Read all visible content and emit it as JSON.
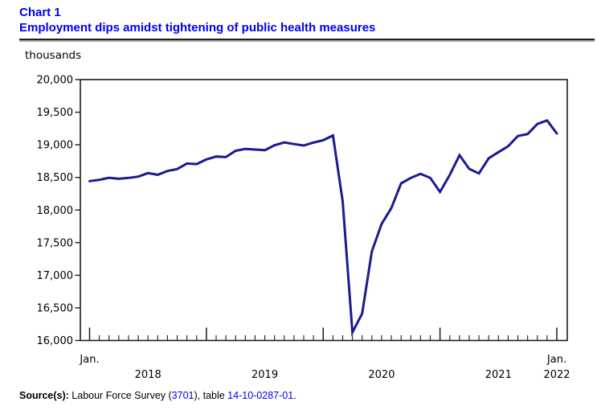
{
  "header": {
    "chart_number": "Chart 1",
    "chart_title": "Employment dips amidst tightening of public health measures"
  },
  "chart_data": {
    "type": "line",
    "title": "Employment dips amidst tightening of public health measures",
    "ylabel": "thousands",
    "ylim": [
      16000,
      20000
    ],
    "y_tick_step": 500,
    "y_tick_labels": [
      "20,000",
      "19,500",
      "19,000",
      "18,500",
      "18,000",
      "17,500",
      "17,000",
      "16,500",
      "16,000"
    ],
    "x_first_label": "Jan.",
    "x_last_label": "Jan.",
    "x_year_labels": [
      "2018",
      "2019",
      "2020",
      "2021",
      "2022"
    ],
    "x_range": [
      "Jan. 2018",
      "Jan. 2022"
    ],
    "grid": "off",
    "line_color": "#1b1b8f",
    "series": [
      {
        "name": "Employment (thousands)",
        "values": [
          18443,
          18463,
          18495,
          18479,
          18493,
          18512,
          18566,
          18541,
          18598,
          18628,
          18713,
          18705,
          18776,
          18820,
          18812,
          18908,
          18937,
          18928,
          18918,
          18993,
          19036,
          19012,
          18989,
          19035,
          19071,
          19143,
          18131,
          16123,
          16413,
          17366,
          17786,
          18031,
          18409,
          18493,
          18555,
          18492,
          18278,
          18537,
          18841,
          18631,
          18562,
          18793,
          18887,
          18978,
          19135,
          19166,
          19320,
          19374,
          19174
        ]
      }
    ]
  },
  "footer": {
    "source_label": "Source(s):",
    "text_1": " Labour Force Survey (",
    "survey_link": "3701",
    "text_2": "), table ",
    "table_link": "14-10-0287-01",
    "text_3": "."
  }
}
